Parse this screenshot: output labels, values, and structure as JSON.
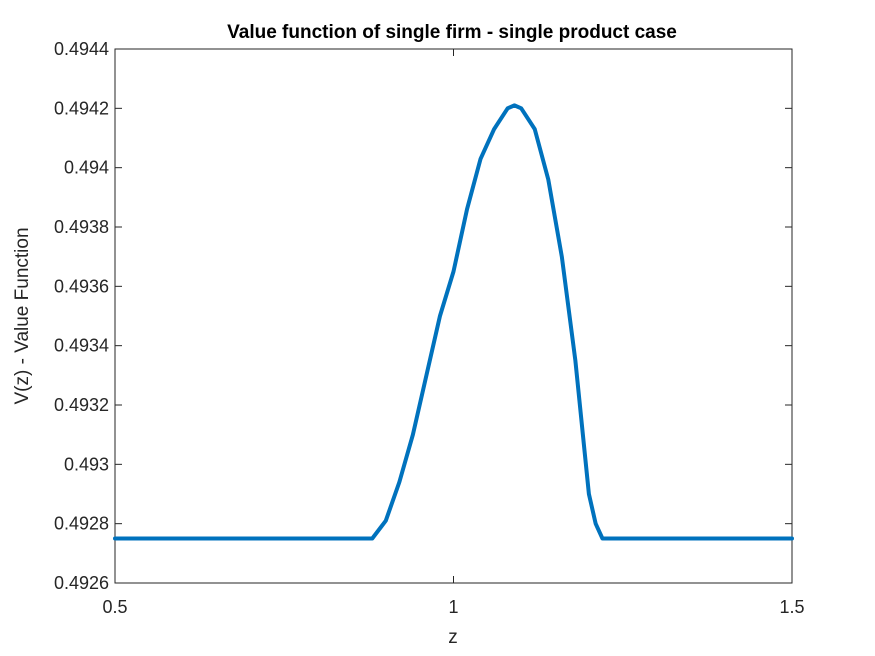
{
  "chart_data": {
    "type": "line",
    "title": "Value function of single firm - single product case",
    "xlabel": "z",
    "ylabel": "V(z) - Value Function",
    "xlim": [
      0.5,
      1.5
    ],
    "ylim": [
      0.4926,
      0.4944
    ],
    "xticks": [
      0.5,
      1,
      1.5
    ],
    "xtick_labels": [
      "0.5",
      "1",
      "1.5"
    ],
    "yticks": [
      0.4926,
      0.4928,
      0.493,
      0.4932,
      0.4934,
      0.4936,
      0.4938,
      0.494,
      0.4942,
      0.4944
    ],
    "ytick_labels": [
      "0.4926",
      "0.4928",
      "0.493",
      "0.4932",
      "0.4934",
      "0.4936",
      "0.4938",
      "0.494",
      "0.4942",
      "0.4944"
    ],
    "grid": false,
    "color": "#0072BD",
    "series": [
      {
        "x": [
          0.5,
          0.88,
          0.9,
          0.92,
          0.94,
          0.96,
          0.98,
          1.0,
          1.02,
          1.04,
          1.06,
          1.08,
          1.09,
          1.1,
          1.12,
          1.14,
          1.16,
          1.18,
          1.2,
          1.21,
          1.22,
          1.5
        ],
        "y": [
          0.49275,
          0.49275,
          0.49281,
          0.49294,
          0.4931,
          0.4933,
          0.4935,
          0.49365,
          0.49386,
          0.49403,
          0.49413,
          0.4942,
          0.49421,
          0.4942,
          0.49413,
          0.49396,
          0.4937,
          0.49335,
          0.4929,
          0.4928,
          0.49275,
          0.49275
        ]
      }
    ]
  }
}
